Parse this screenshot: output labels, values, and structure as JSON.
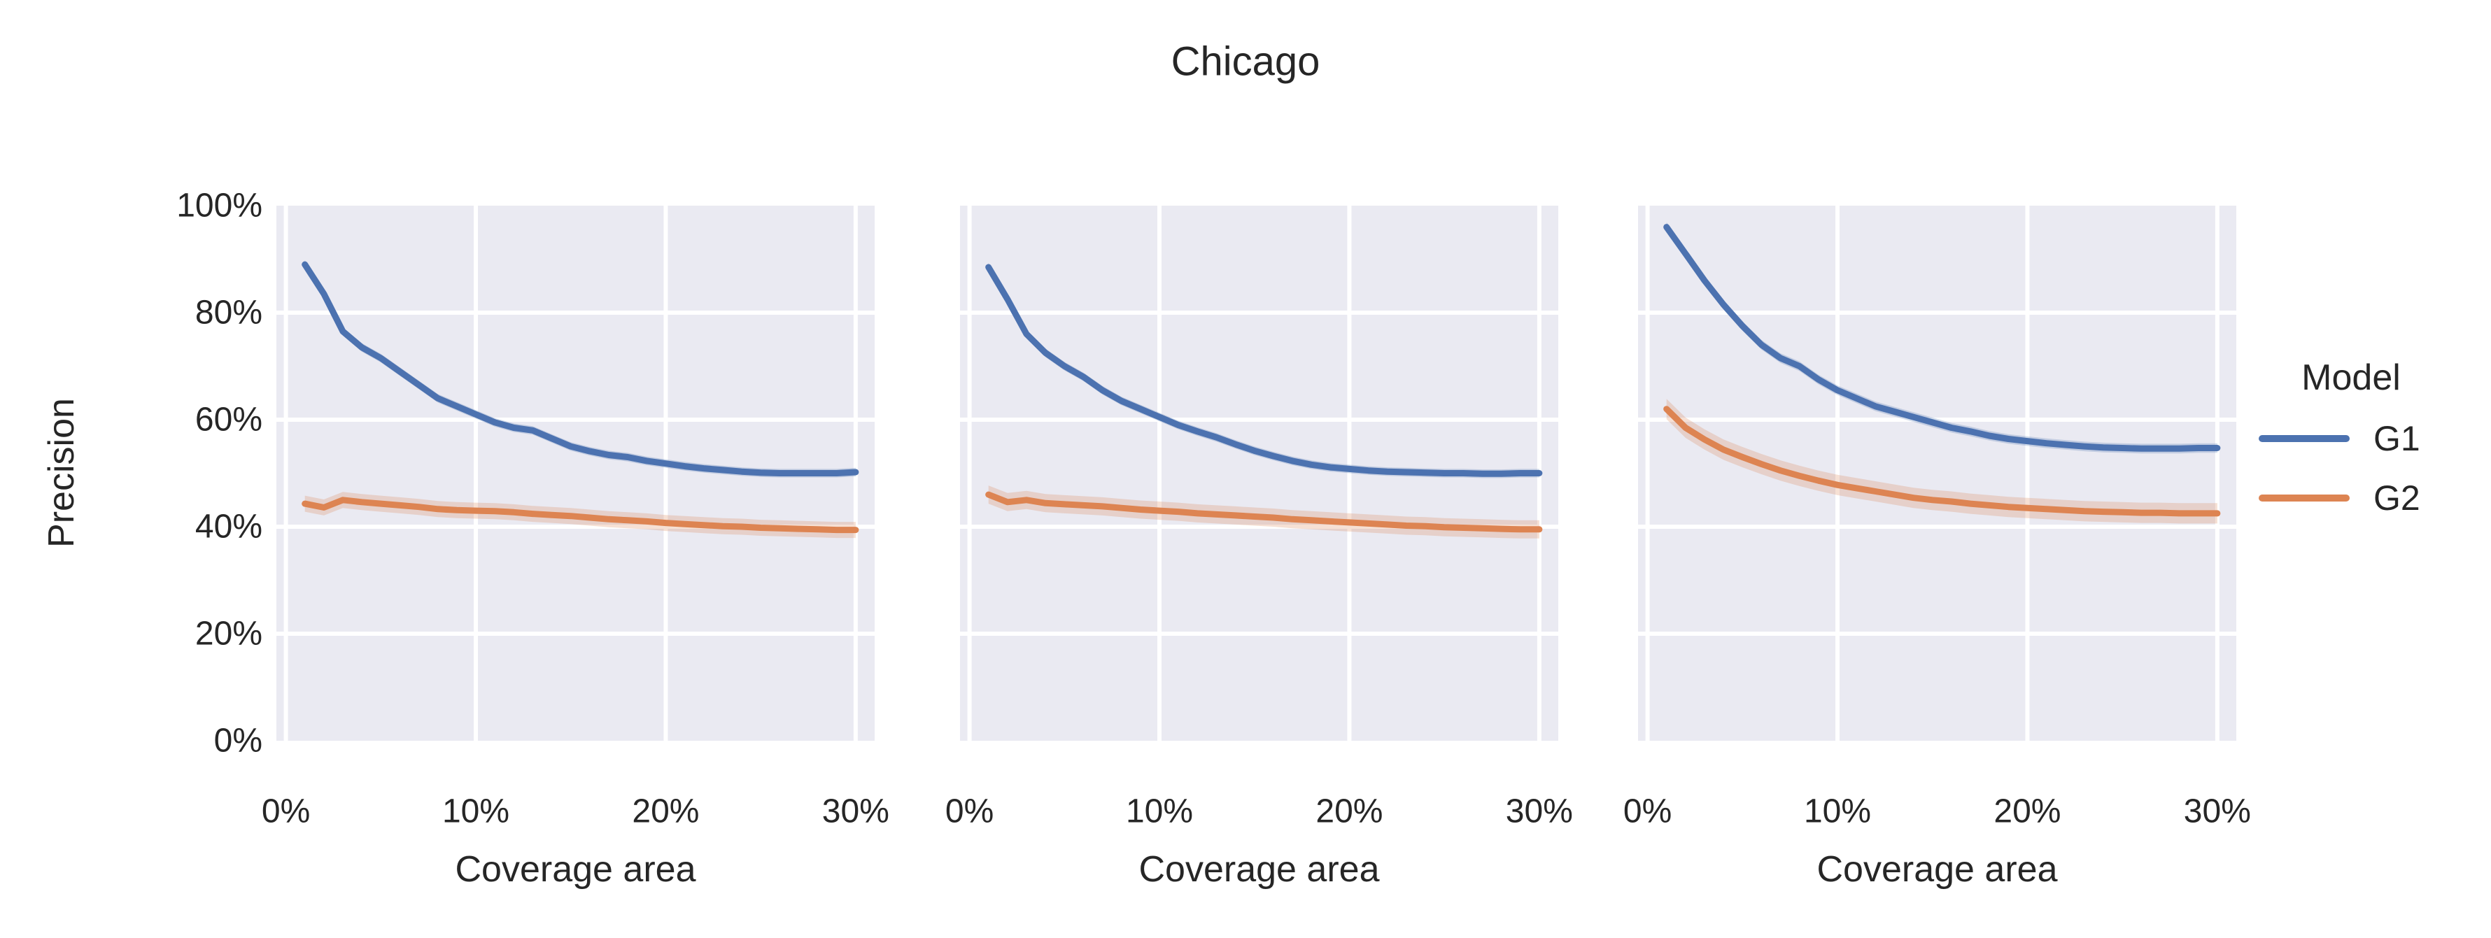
{
  "figure": {
    "title": "Chicago",
    "y_axis": {
      "label": "Precision",
      "ticks": [
        "100%",
        "80%",
        "60%",
        "40%",
        "20%",
        "0%"
      ],
      "tick_values": [
        100,
        80,
        60,
        40,
        20,
        0
      ]
    },
    "x_axis": {
      "label": "Coverage area",
      "ticks": [
        "0%",
        "10%",
        "20%",
        "30%"
      ],
      "tick_values": [
        0,
        10,
        20,
        30
      ]
    },
    "legend": {
      "title": "Model",
      "entries": [
        {
          "label": "G1",
          "color": "#4c72b0"
        },
        {
          "label": "G2",
          "color": "#dd8452"
        }
      ]
    }
  },
  "colors": {
    "panel_background": "#eaeaf2",
    "gridline": "#ffffff",
    "text": "#262626",
    "g1": "#4c72b0",
    "g2": "#dd8452"
  },
  "chart_data": {
    "type": "line",
    "title": "Chicago",
    "xlabel": "Coverage area",
    "ylabel": "Precision",
    "units": "percent",
    "xlim": [
      -0.5,
      31
    ],
    "ylim": [
      0,
      100
    ],
    "x_ticks": [
      0,
      10,
      20,
      30
    ],
    "y_ticks": [
      0,
      20,
      40,
      60,
      80,
      100
    ],
    "grid": true,
    "legend_position": "right",
    "x": [
      1,
      2,
      3,
      4,
      5,
      6,
      7,
      8,
      9,
      10,
      11,
      12,
      13,
      14,
      15,
      16,
      17,
      18,
      19,
      20,
      21,
      22,
      23,
      24,
      25,
      26,
      27,
      28,
      29,
      30
    ],
    "panels": [
      {
        "name": "panel-1",
        "series": [
          {
            "name": "G1",
            "color": "#4c72b0",
            "ci": 0.8,
            "values": [
              89,
              83.5,
              76.5,
              73.5,
              71.5,
              69,
              66.5,
              64,
              62.5,
              61,
              59.5,
              58.5,
              58,
              56.5,
              55,
              54.1,
              53.4,
              53,
              52.3,
              51.8,
              51.3,
              50.9,
              50.6,
              50.3,
              50.1,
              50,
              50,
              50,
              50,
              50.2
            ]
          },
          {
            "name": "G2",
            "color": "#dd8452",
            "ci": 1.5,
            "values": [
              44.3,
              43.6,
              45,
              44.6,
              44.3,
              44,
              43.7,
              43.3,
              43.1,
              43,
              42.9,
              42.7,
              42.4,
              42.2,
              42,
              41.7,
              41.4,
              41.2,
              41,
              40.7,
              40.5,
              40.3,
              40.1,
              40,
              39.8,
              39.7,
              39.6,
              39.5,
              39.4,
              39.4
            ]
          }
        ]
      },
      {
        "name": "panel-2",
        "series": [
          {
            "name": "G1",
            "color": "#4c72b0",
            "ci": 0.8,
            "values": [
              88.5,
              82.5,
              76,
              72.5,
              70,
              68,
              65.5,
              63.5,
              62,
              60.5,
              59,
              57.8,
              56.7,
              55.4,
              54.2,
              53.2,
              52.3,
              51.6,
              51.1,
              50.8,
              50.5,
              50.3,
              50.2,
              50.1,
              50,
              50,
              49.9,
              49.9,
              50,
              50
            ]
          },
          {
            "name": "G2",
            "color": "#dd8452",
            "ci": 1.7,
            "values": [
              46,
              44.6,
              45,
              44.4,
              44.2,
              44,
              43.8,
              43.5,
              43.2,
              43,
              42.8,
              42.5,
              42.3,
              42.1,
              41.9,
              41.7,
              41.4,
              41.2,
              41,
              40.8,
              40.6,
              40.4,
              40.2,
              40.1,
              39.9,
              39.8,
              39.7,
              39.6,
              39.5,
              39.5
            ]
          }
        ]
      },
      {
        "name": "panel-3",
        "series": [
          {
            "name": "G1",
            "color": "#4c72b0",
            "ci": 0.9,
            "values": [
              96,
              91,
              86,
              81.5,
              77.5,
              74,
              71.5,
              70,
              67.5,
              65.5,
              64,
              62.5,
              61.5,
              60.5,
              59.5,
              58.5,
              57.8,
              57,
              56.4,
              56,
              55.6,
              55.3,
              55,
              54.8,
              54.7,
              54.6,
              54.6,
              54.6,
              54.7,
              54.7
            ]
          },
          {
            "name": "G2",
            "color": "#dd8452",
            "ci": 1.9,
            "values": [
              62,
              58.5,
              56.3,
              54.4,
              53,
              51.7,
              50.5,
              49.5,
              48.6,
              47.8,
              47.2,
              46.6,
              46,
              45.4,
              45,
              44.7,
              44.3,
              44,
              43.7,
              43.5,
              43.3,
              43.1,
              42.9,
              42.8,
              42.7,
              42.6,
              42.6,
              42.5,
              42.5,
              42.5
            ]
          }
        ]
      }
    ]
  }
}
